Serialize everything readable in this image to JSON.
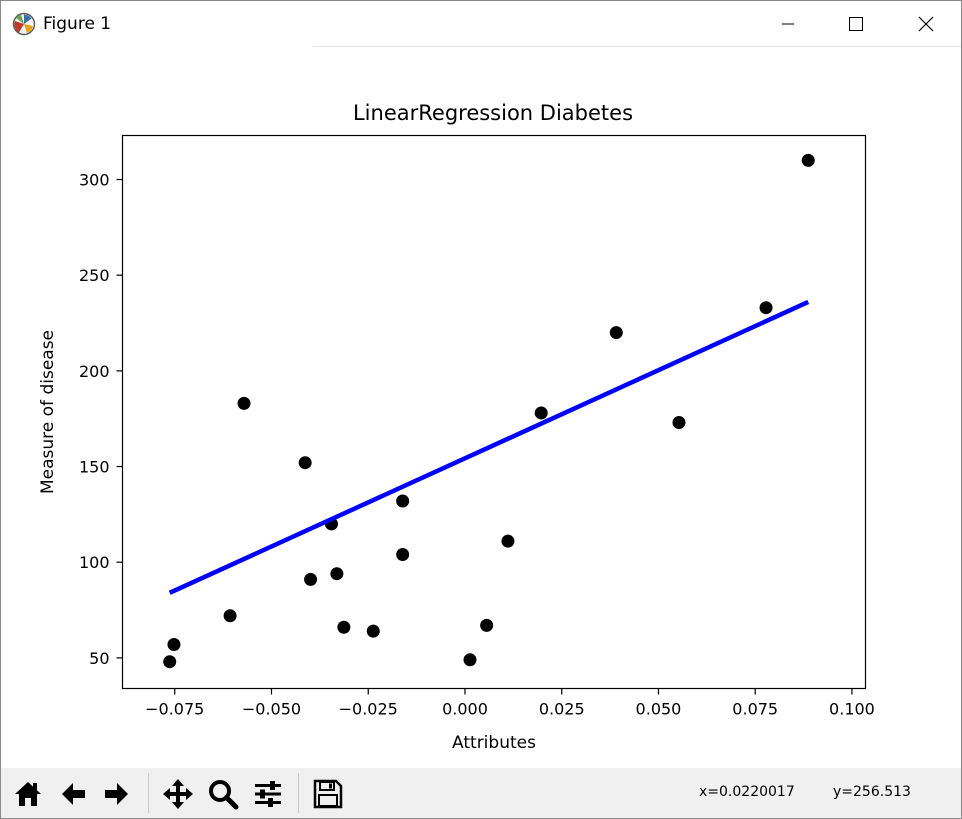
{
  "window": {
    "title": "Figure 1"
  },
  "toolbar": {
    "coord_x": "x=0.0220017",
    "coord_y": "y=256.513",
    "buttons": [
      "home-icon",
      "back-icon",
      "forward-icon",
      "pan-icon",
      "zoom-icon",
      "configure-subplots-icon",
      "save-icon"
    ]
  },
  "chart_data": {
    "type": "scatter",
    "title": "LinearRegression Diabetes",
    "xlabel": "Attributes",
    "ylabel": "Measure of disease",
    "xlim": [
      -0.0885,
      0.1035
    ],
    "ylim": [
      34,
      323
    ],
    "xticks": [
      -0.075,
      -0.05,
      -0.025,
      0.0,
      0.025,
      0.05,
      0.075,
      0.1
    ],
    "xtick_labels": [
      "−0.075",
      "−0.050",
      "−0.025",
      "0.000",
      "0.025",
      "0.050",
      "0.075",
      "0.100"
    ],
    "yticks": [
      50,
      100,
      150,
      200,
      250,
      300
    ],
    "ytick_labels": [
      "50",
      "100",
      "150",
      "200",
      "250",
      "300"
    ],
    "grid": false,
    "points": [
      {
        "x": -0.0763,
        "y": 48
      },
      {
        "x": -0.0752,
        "y": 57
      },
      {
        "x": -0.0607,
        "y": 72
      },
      {
        "x": -0.0571,
        "y": 183
      },
      {
        "x": -0.0413,
        "y": 152
      },
      {
        "x": -0.0399,
        "y": 91
      },
      {
        "x": -0.0345,
        "y": 120
      },
      {
        "x": -0.0331,
        "y": 94
      },
      {
        "x": -0.0313,
        "y": 66
      },
      {
        "x": -0.0237,
        "y": 64
      },
      {
        "x": -0.0161,
        "y": 132
      },
      {
        "x": -0.0161,
        "y": 104
      },
      {
        "x": 0.0013,
        "y": 49
      },
      {
        "x": 0.0056,
        "y": 67
      },
      {
        "x": 0.0111,
        "y": 111
      },
      {
        "x": 0.0197,
        "y": 178
      },
      {
        "x": 0.0391,
        "y": 220
      },
      {
        "x": 0.0553,
        "y": 173
      },
      {
        "x": 0.0778,
        "y": 233
      },
      {
        "x": 0.0887,
        "y": 310
      }
    ],
    "fit_line": {
      "x": [
        -0.0763,
        0.0887
      ],
      "y": [
        84,
        236
      ]
    },
    "point_color": "#000000",
    "line_color": "#0000ff"
  }
}
